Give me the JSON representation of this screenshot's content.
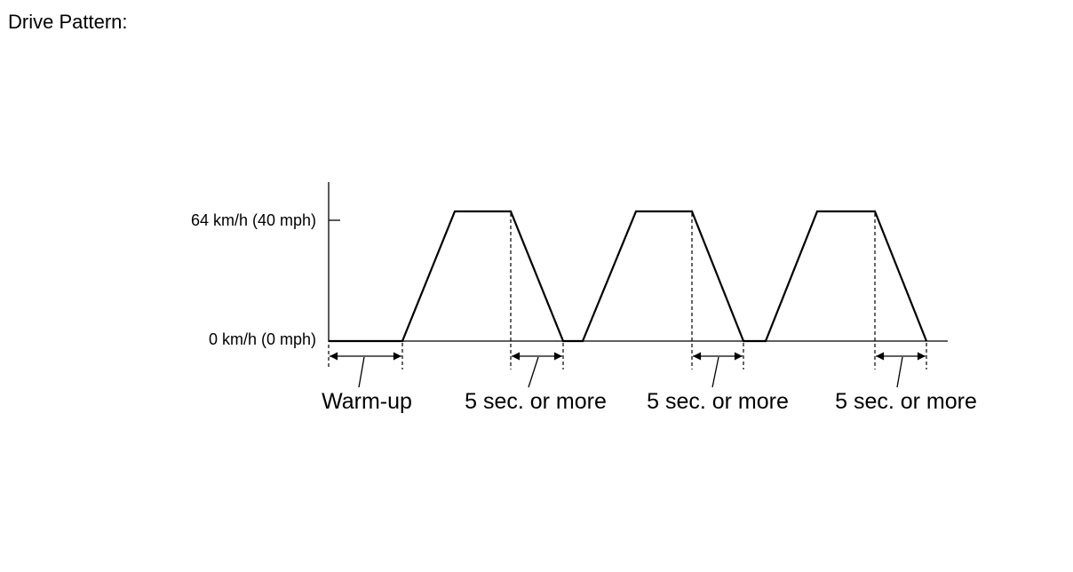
{
  "title": "Drive Pattern:",
  "y_labels": [
    "64 km/h (40 mph)",
    "0 km/h (0 mph)"
  ],
  "intervals": [
    "Warm-up",
    "5 sec. or more",
    "5 sec. or more",
    "5 sec. or more"
  ]
}
